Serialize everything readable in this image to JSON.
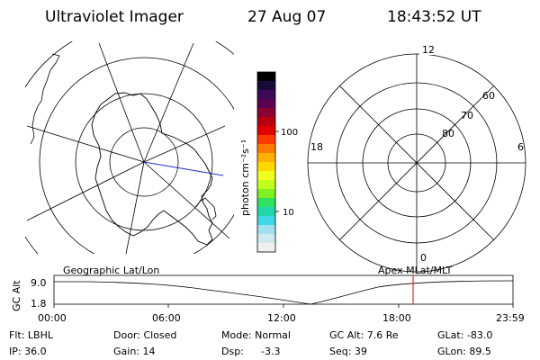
{
  "header": {
    "instrument": "Ultraviolet Imager",
    "date": "27 Aug 07",
    "time": "18:43:52 UT"
  },
  "colorbar": {
    "label": "photon cm⁻²s⁻¹",
    "tick_100": "100",
    "tick_10": "10",
    "colors": [
      "#000000",
      "#1a0a3a",
      "#3a0a55",
      "#5a0050",
      "#8a0030",
      "#b80010",
      "#e00000",
      "#ff3a00",
      "#ff7a00",
      "#ffb000",
      "#ffd800",
      "#f0ff20",
      "#c0ff20",
      "#80f020",
      "#30e060",
      "#20d8a8",
      "#40d8e8",
      "#a0e0f0",
      "#d0e8f0",
      "#f0f0f0"
    ]
  },
  "polar_plot": {
    "label_top": "12",
    "label_bottom": "0",
    "label_left": "18",
    "label_right": "6",
    "ring_60": "60",
    "ring_70": "70",
    "ring_80": "80"
  },
  "timeline": {
    "left_title": "Geographic Lat/Lon",
    "right_title": "Apex MLat/MLT",
    "axis_label": "GC Alt",
    "y_top": "9.0",
    "y_bottom": "1.8",
    "ticks": [
      "00:00",
      "06:00",
      "12:00",
      "18:00",
      "23:59"
    ],
    "marker_color": "#e00000"
  },
  "info": {
    "filter": "Flt: LBHL",
    "ip": "IP: 36.0",
    "door": "Door: Closed",
    "gain": "Gain: 14",
    "mode": "Mode: Normal",
    "dsp_label": "Dsp:",
    "dsp_value": "-3.3",
    "gc_alt": "GC Alt: 7.6 Re",
    "seq": "Seq: 39",
    "glat": "GLat: -83.0",
    "glon": "GLon: 89.5"
  }
}
